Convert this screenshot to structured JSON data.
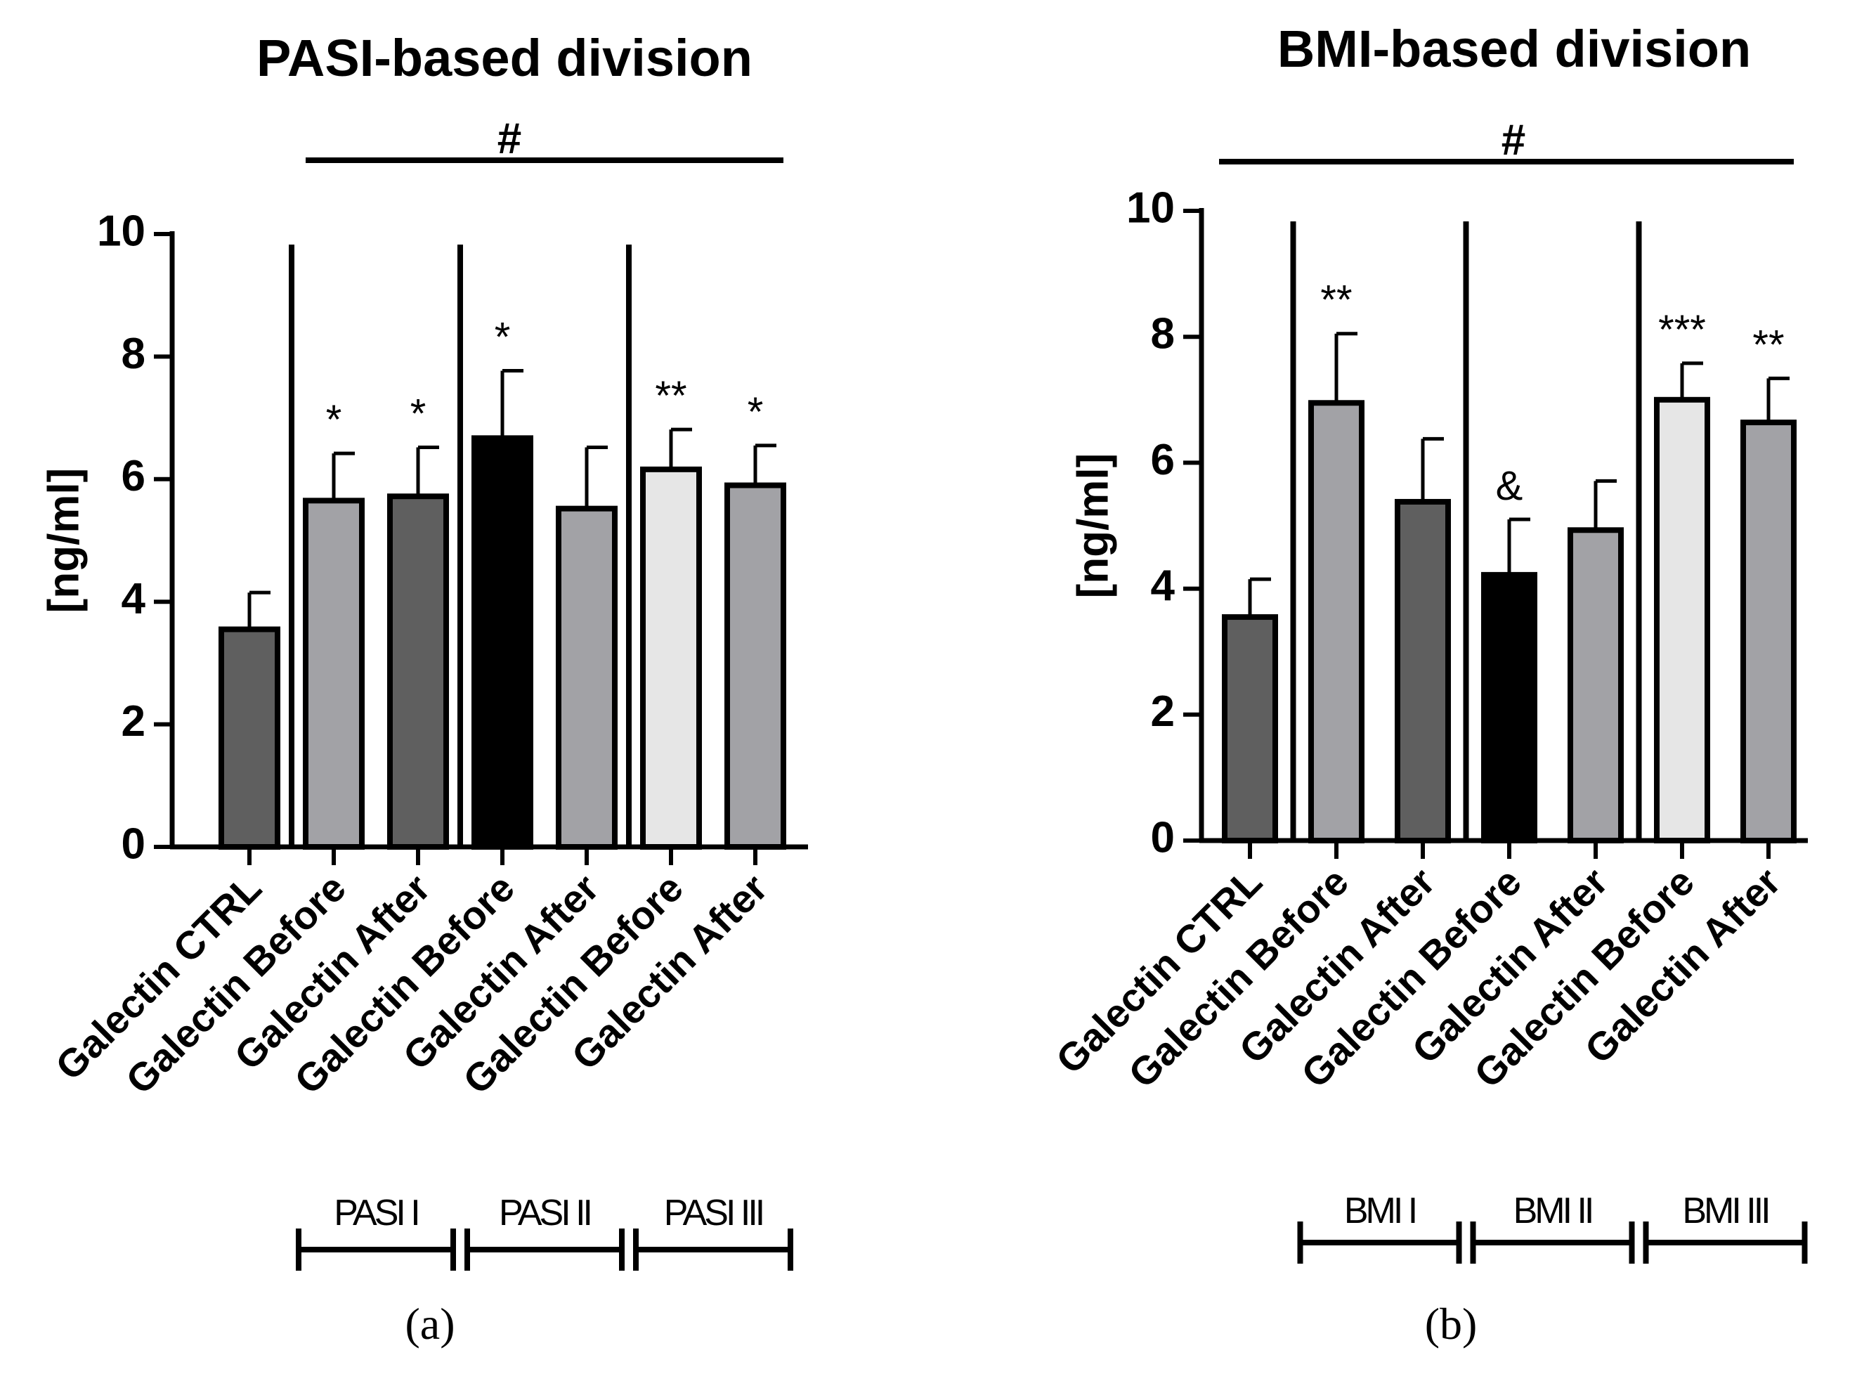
{
  "chart_data": [
    {
      "type": "bar",
      "panel_label": "(a)",
      "title": "PASI-based division",
      "ylabel": "[ng/ml]",
      "xlabel": "",
      "ylim": [
        0,
        10
      ],
      "yticks": [
        "0",
        "2",
        "4",
        "6",
        "8",
        "10"
      ],
      "categories": [
        "Galectin CTRL",
        "Galectin Before",
        "Galectin After",
        "Galectin Before",
        "Galectin After",
        "Galectin Before",
        "Galectin After"
      ],
      "values": [
        3.55,
        5.65,
        5.72,
        6.67,
        5.52,
        6.16,
        5.9
      ],
      "errors": [
        0.6,
        0.77,
        0.8,
        1.1,
        1.0,
        0.65,
        0.65
      ],
      "colors": [
        "#5f5f5f",
        "#a2a2a6",
        "#5f5f5f",
        "#000000",
        "#a2a2a6",
        "#e6e6e6",
        "#a2a2a6"
      ],
      "significance": [
        "",
        "*",
        "*",
        "*",
        "",
        "**",
        "*"
      ],
      "overall_marker": "#",
      "overall_span": [
        1,
        6
      ],
      "separators_after": [
        0,
        2,
        4
      ],
      "groups": [
        {
          "label": "PASI I",
          "span": [
            1,
            2
          ]
        },
        {
          "label": "PASI II",
          "span": [
            3,
            4
          ]
        },
        {
          "label": "PASI III",
          "span": [
            5,
            6
          ]
        }
      ]
    },
    {
      "type": "bar",
      "panel_label": "(b)",
      "title": "BMI-based division",
      "ylabel": "[ng/ml]",
      "xlabel": "",
      "ylim": [
        0,
        10
      ],
      "yticks": [
        "0",
        "2",
        "4",
        "6",
        "8",
        "10"
      ],
      "categories": [
        "Galectin CTRL",
        "Galectin Before",
        "Galectin After",
        "Galectin Before",
        "Galectin After",
        "Galectin Before",
        "Galectin After"
      ],
      "values": [
        3.55,
        6.95,
        5.38,
        4.22,
        4.93,
        7.0,
        6.64
      ],
      "errors": [
        0.6,
        1.1,
        1.0,
        0.88,
        0.78,
        0.58,
        0.7
      ],
      "colors": [
        "#5f5f5f",
        "#a2a2a6",
        "#5f5f5f",
        "#000000",
        "#a2a2a6",
        "#e6e6e6",
        "#a2a2a6"
      ],
      "significance": [
        "",
        "**",
        "",
        "&",
        "",
        "***",
        "**"
      ],
      "overall_marker": "#",
      "overall_span": [
        0,
        6
      ],
      "separators_after": [
        0,
        2,
        4
      ],
      "groups": [
        {
          "label": "BMI I",
          "span": [
            1,
            2
          ]
        },
        {
          "label": "BMI II",
          "span": [
            3,
            4
          ]
        },
        {
          "label": "BMI III",
          "span": [
            5,
            6
          ]
        }
      ]
    }
  ]
}
